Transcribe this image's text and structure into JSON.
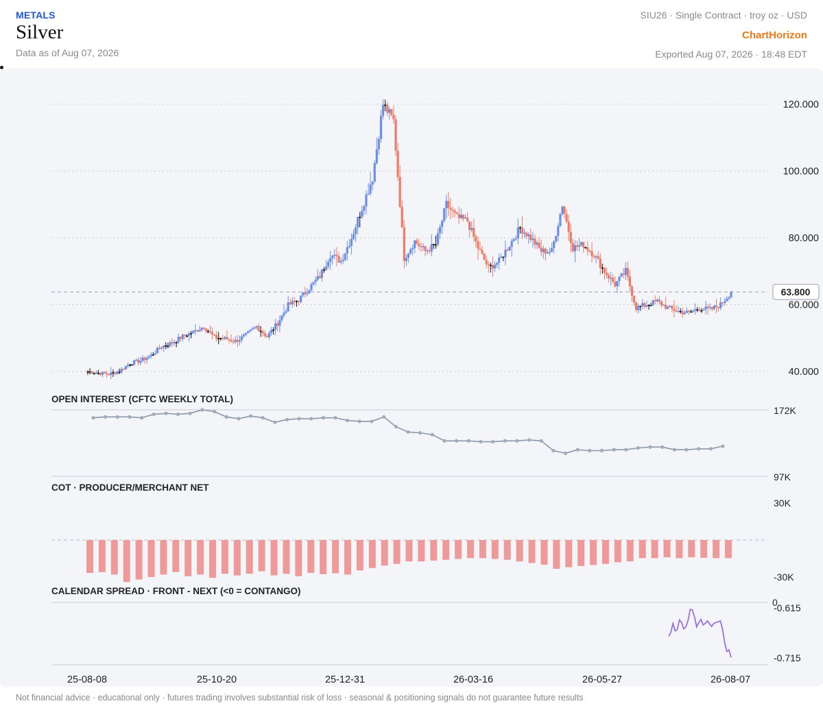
{
  "header": {
    "category": "METALS",
    "title": "Silver",
    "as_of": "Data as of Aug 07, 2026",
    "contract": "SIU26 · Single Contract · troy oz · USD",
    "brand": "ChartHorizon",
    "exported": "Exported Aug 07, 2026 · 18:48 EDT"
  },
  "footer": "Not financial advice · educational only · futures trading involves substantial risk of loss · seasonal & positioning signals do not guarantee future results",
  "colors": {
    "up": "#6b8ee6",
    "down": "#ee7a66",
    "oi_line": "#8a96aa",
    "cot_bar": "#ef9a9a",
    "spread_line": "#9b6fe0",
    "grid": "#c9ccd4"
  },
  "chart_data": [
    {
      "type": "candlestick",
      "title": "",
      "ylim": [
        40,
        120
      ],
      "y_ticks": [
        "120.000",
        "100.000",
        "80.000",
        "60.000",
        "40.000"
      ],
      "last_price": 63.8,
      "last_label": "63.800",
      "x_tick_labels": [
        "25-08-08",
        "25-10-20",
        "25-12-31",
        "26-03-16",
        "26-05-27",
        "26-08-07"
      ],
      "x_range": [
        "2025-08-08",
        "2026-08-07"
      ],
      "closes_weekly": [
        40,
        39.6,
        39.2,
        40.1,
        42.5,
        43.2,
        44.8,
        47.5,
        48.6,
        50.5,
        51.8,
        53.5,
        50.2,
        49.8,
        49.1,
        50.8,
        53.5,
        50.4,
        54.5,
        59.8,
        61.5,
        65,
        68.5,
        75,
        73,
        80,
        89,
        98,
        120,
        115,
        74,
        79,
        76,
        78,
        90,
        86,
        85,
        77,
        71,
        73,
        78,
        83,
        80,
        76,
        76,
        90,
        77,
        78,
        75,
        70,
        66,
        70,
        59,
        60,
        61,
        59,
        58,
        57.5,
        59,
        58.5,
        60,
        63.8
      ]
    },
    {
      "type": "line",
      "title": "OPEN INTEREST (CFTC WEEKLY TOTAL)",
      "y_ticks": [
        "172K",
        "97K"
      ],
      "ylim": [
        97,
        172
      ],
      "unit": "K",
      "values": [
        163,
        164,
        164,
        164,
        163,
        167,
        168,
        167,
        168,
        172,
        170,
        164,
        162,
        165,
        163,
        158,
        161,
        162,
        162,
        163,
        163,
        160,
        159,
        159,
        164,
        153,
        147,
        146,
        144,
        137,
        137,
        137,
        136,
        136,
        137,
        137,
        138,
        137,
        126,
        123,
        127,
        126,
        126,
        127,
        127,
        129,
        130,
        130,
        127,
        127,
        128,
        128,
        131
      ]
    },
    {
      "type": "bar",
      "title": "COT · PRODUCER/MERCHANT NET",
      "y_ticks": [
        "30K",
        "-30K"
      ],
      "ylim": [
        -30,
        30
      ],
      "unit": "K",
      "values": [
        -20,
        -19.5,
        -21,
        -25.5,
        -24,
        -22.5,
        -21,
        -19.5,
        -22,
        -21,
        -23,
        -20.5,
        -21.5,
        -20.5,
        -19,
        -21.5,
        -20.5,
        -22,
        -20,
        -20.8,
        -20.2,
        -21,
        -18.5,
        -17,
        -15.5,
        -14.5,
        -13,
        -13,
        -12.5,
        -12,
        -11.5,
        -11,
        -11,
        -11.5,
        -12,
        -13,
        -14,
        -15,
        -17.5,
        -16.5,
        -15.8,
        -15.2,
        -14.5,
        -13.5,
        -13,
        -11,
        -11,
        -10.5,
        -11,
        -10.5,
        -10.8,
        -11,
        -11
      ]
    },
    {
      "type": "line",
      "title": "CALENDAR SPREAD · FRONT - NEXT (<0 = CONTANGO)",
      "y_ticks": [
        "0",
        "-0.615",
        "-0.715"
      ],
      "ylim": [
        -0.74,
        -0.6
      ],
      "values": [
        -0.672,
        -0.664,
        -0.646,
        -0.661,
        -0.658,
        -0.639,
        -0.644,
        -0.657,
        -0.653,
        -0.64,
        -0.618,
        -0.619,
        -0.633,
        -0.653,
        -0.644,
        -0.638,
        -0.649,
        -0.646,
        -0.641,
        -0.647,
        -0.652,
        -0.646,
        -0.644,
        -0.643,
        -0.641,
        -0.657,
        -0.684,
        -0.702,
        -0.699,
        -0.714
      ]
    }
  ]
}
